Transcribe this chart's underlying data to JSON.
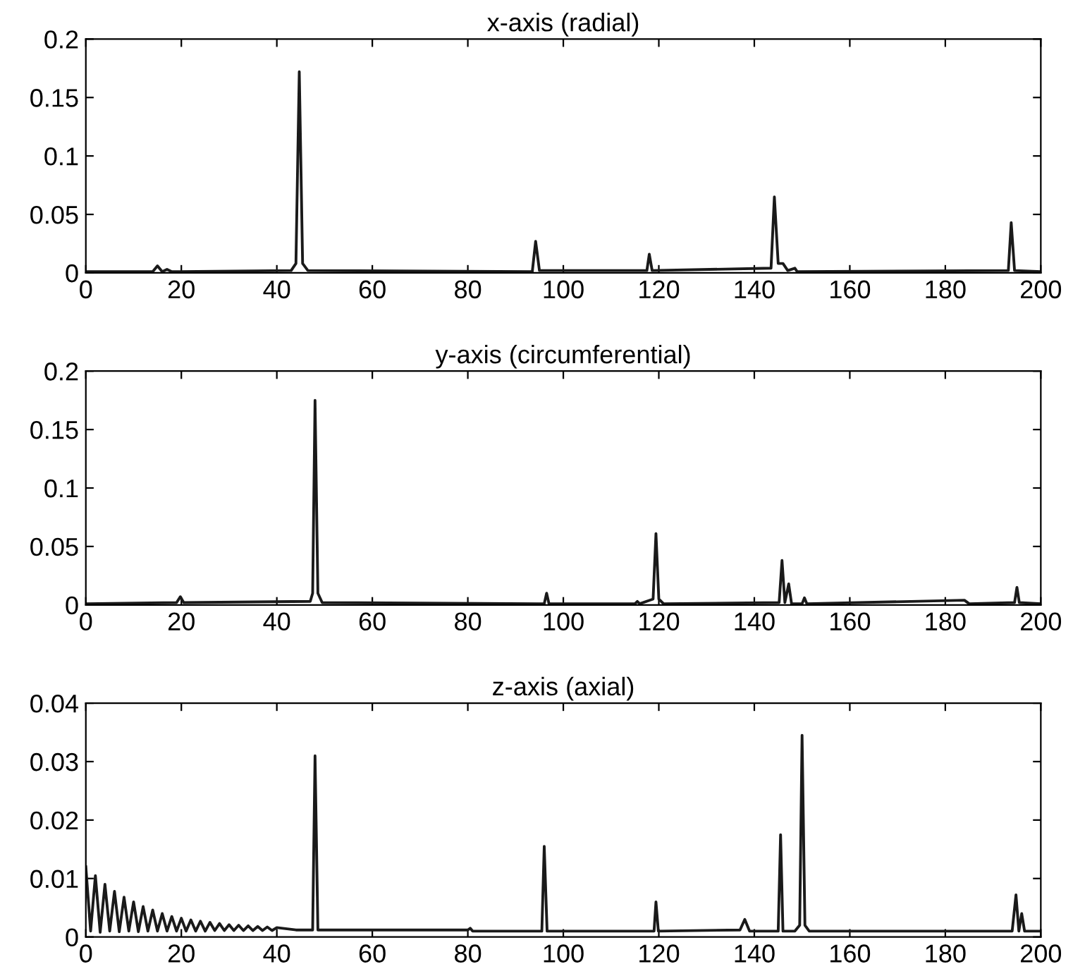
{
  "chart_data": [
    {
      "type": "line",
      "title": "x-axis (radial)",
      "xlim": [
        0,
        200
      ],
      "ylim": [
        0,
        0.2
      ],
      "xticks": [
        0,
        20,
        40,
        60,
        80,
        100,
        120,
        140,
        160,
        180,
        200
      ],
      "yticks": [
        0,
        0.05,
        0.1,
        0.15,
        0.2
      ],
      "grid": false,
      "marker": "none",
      "line_style": "solid",
      "series": [
        {
          "color": "#1a1a1a",
          "x": [
            0,
            14,
            15,
            16,
            17,
            18,
            43,
            44,
            44.7,
            45.4,
            46.5,
            93.5,
            94.2,
            95,
            117.5,
            118,
            118.6,
            143.5,
            144.2,
            145,
            146,
            147,
            148.5,
            149,
            193.2,
            193.8,
            194.5,
            200
          ],
          "values": [
            0.001,
            0.001,
            0.006,
            0.001,
            0.003,
            0.001,
            0.002,
            0.008,
            0.172,
            0.008,
            0.002,
            0.001,
            0.027,
            0.002,
            0.002,
            0.016,
            0.002,
            0.004,
            0.065,
            0.008,
            0.008,
            0.002,
            0.004,
            0.001,
            0.002,
            0.043,
            0.002,
            0.001
          ]
        }
      ]
    },
    {
      "type": "line",
      "title": "y-axis (circumferential)",
      "xlim": [
        0,
        200
      ],
      "ylim": [
        0,
        0.2
      ],
      "xticks": [
        0,
        20,
        40,
        60,
        80,
        100,
        120,
        140,
        160,
        180,
        200
      ],
      "yticks": [
        0,
        0.05,
        0.1,
        0.15,
        0.2
      ],
      "grid": false,
      "marker": "none",
      "line_style": "solid",
      "series": [
        {
          "color": "#1a1a1a",
          "x": [
            0,
            19,
            19.8,
            20.5,
            47,
            47.5,
            48,
            48.6,
            49.5,
            96,
            96.5,
            97,
            115,
            115.5,
            116,
            118.8,
            119.4,
            120,
            121,
            145.2,
            145.8,
            146.4,
            147.2,
            147.8,
            150,
            150.5,
            151,
            184,
            185,
            194.5,
            195,
            195.5,
            200
          ],
          "values": [
            0.001,
            0.002,
            0.007,
            0.002,
            0.003,
            0.01,
            0.175,
            0.01,
            0.002,
            0.001,
            0.01,
            0.001,
            0.001,
            0.003,
            0.001,
            0.005,
            0.061,
            0.005,
            0.001,
            0.002,
            0.038,
            0.002,
            0.018,
            0.001,
            0.001,
            0.006,
            0.001,
            0.004,
            0.001,
            0.002,
            0.015,
            0.002,
            0.001
          ]
        }
      ]
    },
    {
      "type": "line",
      "title": "z-axis (axial)",
      "xlim": [
        0,
        200
      ],
      "ylim": [
        0,
        0.04
      ],
      "xticks": [
        0,
        20,
        40,
        60,
        80,
        100,
        120,
        140,
        160,
        180,
        200
      ],
      "yticks": [
        0,
        0.01,
        0.02,
        0.03,
        0.04
      ],
      "grid": false,
      "marker": "none",
      "line_style": "solid",
      "series": [
        {
          "color": "#1a1a1a",
          "x": [
            0,
            1,
            2,
            3,
            4,
            5,
            6,
            7,
            8,
            9,
            10,
            11,
            12,
            13,
            14,
            15,
            16,
            17,
            18,
            19,
            20,
            21,
            22,
            23,
            24,
            25,
            26,
            27,
            28,
            29,
            30,
            31,
            32,
            33,
            34,
            35,
            36,
            37,
            38,
            39,
            40,
            44,
            47.5,
            48,
            48.6,
            80,
            80.5,
            81,
            95.5,
            96,
            96.6,
            119,
            119.4,
            119.9,
            137,
            138,
            139,
            145,
            145.5,
            146,
            148.5,
            149.5,
            150,
            150.6,
            151.5,
            194,
            194.8,
            195.4,
            196,
            196.6,
            200
          ],
          "values": [
            0.012,
            0.001,
            0.0105,
            0.0008,
            0.009,
            0.001,
            0.0078,
            0.0009,
            0.0068,
            0.001,
            0.006,
            0.0009,
            0.0052,
            0.001,
            0.0046,
            0.001,
            0.004,
            0.001,
            0.0035,
            0.001,
            0.0032,
            0.001,
            0.0029,
            0.001,
            0.0027,
            0.001,
            0.0025,
            0.0011,
            0.0023,
            0.0011,
            0.0021,
            0.0011,
            0.002,
            0.0011,
            0.0019,
            0.0011,
            0.0018,
            0.0011,
            0.0017,
            0.0011,
            0.0016,
            0.0012,
            0.0012,
            0.031,
            0.0012,
            0.0012,
            0.0015,
            0.001,
            0.001,
            0.0155,
            0.001,
            0.001,
            0.006,
            0.001,
            0.0012,
            0.003,
            0.001,
            0.001,
            0.0175,
            0.001,
            0.001,
            0.002,
            0.0345,
            0.002,
            0.001,
            0.001,
            0.0072,
            0.001,
            0.004,
            0.001,
            0.001
          ]
        }
      ]
    }
  ]
}
